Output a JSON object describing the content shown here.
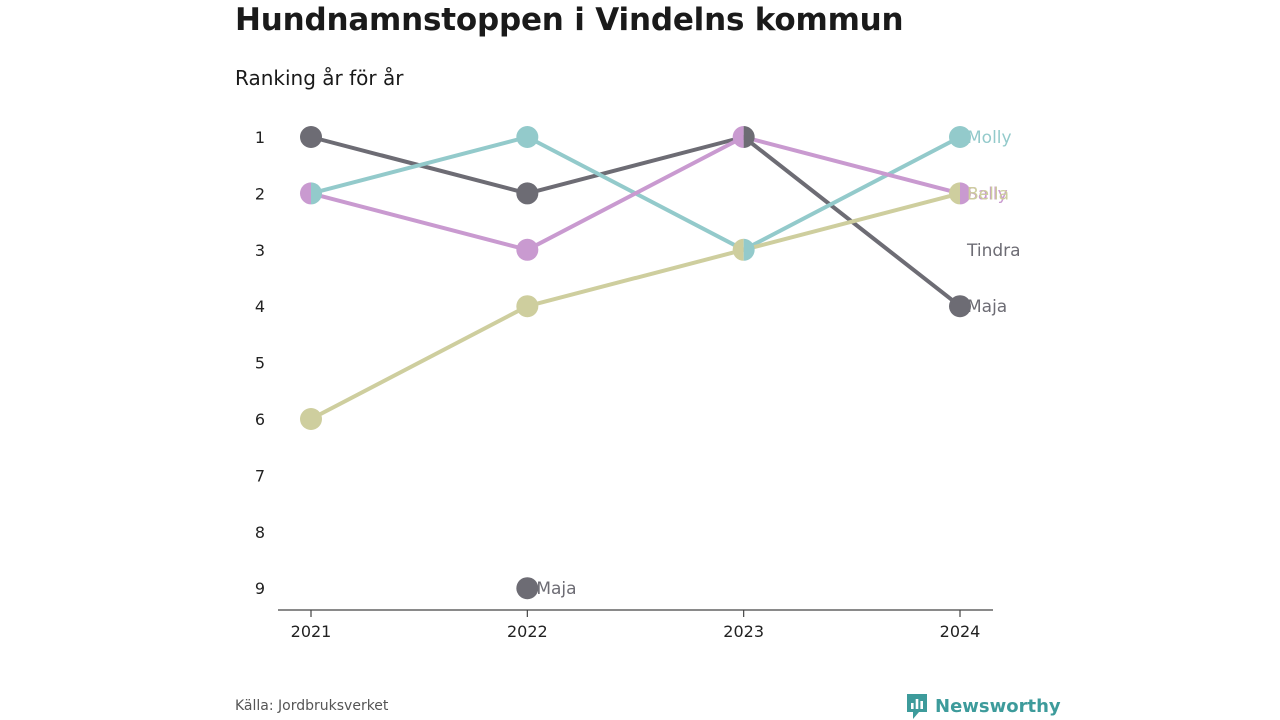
{
  "title": "Hundnamnstoppen i Vindelns kommun",
  "subtitle": "Ranking år för år",
  "source": "Källa: Jordbruksverket",
  "brand": {
    "name": "Newsworthy",
    "icon": "newsworthy-logo-icon",
    "color": "#3d9b9b"
  },
  "chart_data": {
    "type": "line",
    "x": [
      "2021",
      "2022",
      "2023",
      "2024"
    ],
    "y_ticks": [
      "1",
      "2",
      "3",
      "4",
      "5",
      "6",
      "7",
      "8",
      "9"
    ],
    "ylim": [
      1,
      9
    ],
    "y_reversed": true,
    "grid": false,
    "series": [
      {
        "name": "Maja",
        "color": "#6d6c74",
        "values": [
          1,
          2,
          1,
          4
        ]
      },
      {
        "name": "Molly",
        "color": "#93cacb",
        "values": [
          2,
          1,
          3,
          1
        ]
      },
      {
        "name": "Sally",
        "color": "#c99ad0",
        "values": [
          2,
          3,
          1,
          2
        ]
      },
      {
        "name": "Bella",
        "color": "#cece9e",
        "values": [
          6,
          4,
          3,
          2
        ]
      },
      {
        "name": "Tindra",
        "color": "#6d6c74",
        "values": [
          null,
          null,
          null,
          null
        ]
      }
    ],
    "annotations": [
      {
        "text": "Maja",
        "x": "2022",
        "y": 9,
        "color": "#6d6c74"
      }
    ]
  }
}
